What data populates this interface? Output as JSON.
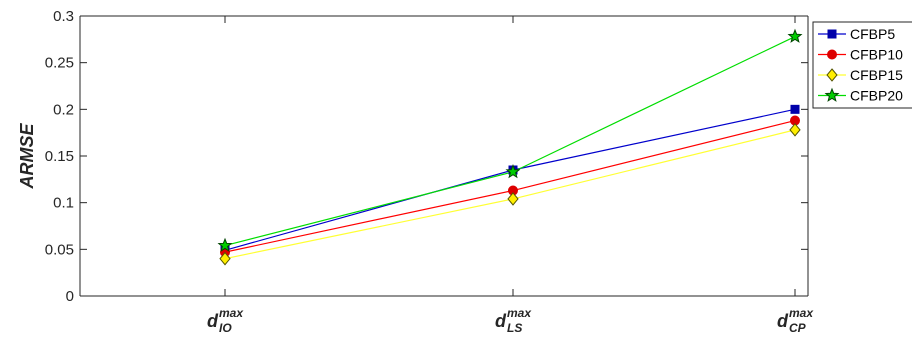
{
  "chart_data": {
    "type": "line",
    "categories": [
      {
        "base": "d",
        "sup": "max",
        "sub": "IO"
      },
      {
        "base": "d",
        "sup": "max",
        "sub": "LS"
      },
      {
        "base": "d",
        "sup": "max",
        "sub": "CP"
      }
    ],
    "ylabel": "ARMSE",
    "xlabel": "",
    "ylim": [
      0,
      0.3
    ],
    "yticks": [
      0,
      0.05,
      0.1,
      0.15,
      0.2,
      0.25,
      0.3
    ],
    "ytick_labels": [
      "0",
      "0.05",
      "0.1",
      "0.15",
      "0.2",
      "0.25",
      "0.3"
    ],
    "grid": false,
    "legend_position": "top-right",
    "series": [
      {
        "name": "CFBP5",
        "values": [
          0.049,
          0.135,
          0.2
        ],
        "color": "#0000cc",
        "marker_color": "#0000aa",
        "marker": "square"
      },
      {
        "name": "CFBP10",
        "values": [
          0.047,
          0.113,
          0.188
        ],
        "color": "#ff0000",
        "marker_color": "#dd0000",
        "marker": "circle"
      },
      {
        "name": "CFBP15",
        "values": [
          0.04,
          0.104,
          0.178
        ],
        "color": "#ffff33",
        "marker_color": "#ffee00",
        "marker": "diamond"
      },
      {
        "name": "CFBP20",
        "values": [
          0.054,
          0.133,
          0.278
        ],
        "color": "#00dd00",
        "marker_color": "#00cc00",
        "marker": "star"
      }
    ]
  }
}
